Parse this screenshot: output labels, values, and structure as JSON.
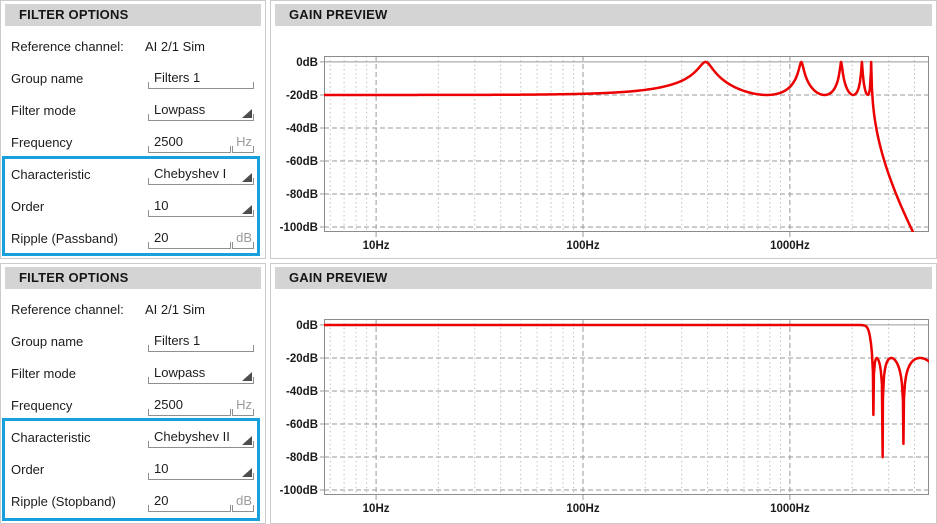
{
  "accent_blue": "#18a0dc",
  "curve_red": "#ec0000",
  "panels": [
    {
      "options": {
        "header": "FILTER OPTIONS",
        "reference": {
          "label": "Reference channel:",
          "value": "AI 2/1 Sim"
        },
        "group": {
          "label": "Group name",
          "value": "Filters 1"
        },
        "mode": {
          "label": "Filter mode",
          "value": "Lowpass"
        },
        "frequency": {
          "label": "Frequency",
          "value": "2500",
          "unit": "Hz"
        },
        "characteristic": {
          "label": "Characteristic",
          "value": "Chebyshev I"
        },
        "order": {
          "label": "Order",
          "value": "10"
        },
        "ripple": {
          "label": "Ripple (Passband)",
          "value": "20",
          "unit": "dB"
        }
      },
      "preview": {
        "header": "GAIN PREVIEW"
      }
    },
    {
      "options": {
        "header": "FILTER OPTIONS",
        "reference": {
          "label": "Reference channel:",
          "value": "AI 2/1 Sim"
        },
        "group": {
          "label": "Group name",
          "value": "Filters 1"
        },
        "mode": {
          "label": "Filter mode",
          "value": "Lowpass"
        },
        "frequency": {
          "label": "Frequency",
          "value": "2500",
          "unit": "Hz"
        },
        "characteristic": {
          "label": "Characteristic",
          "value": "Chebyshev II"
        },
        "order": {
          "label": "Order",
          "value": "10"
        },
        "ripple": {
          "label": "Ripple (Stopband)",
          "value": "20",
          "unit": "dB"
        }
      },
      "preview": {
        "header": "GAIN PREVIEW"
      }
    }
  ],
  "chart_data": [
    {
      "type": "line",
      "title": "GAIN PREVIEW",
      "x_axis": {
        "scale": "log",
        "unit": "Hz",
        "min": 5.6,
        "max": 4700,
        "ticks": [
          10,
          100,
          1000
        ],
        "tick_labels": [
          "10Hz",
          "100Hz",
          "1000Hz"
        ],
        "minor_gridlines": [
          6,
          7,
          8,
          9,
          20,
          30,
          40,
          50,
          60,
          70,
          80,
          90,
          200,
          300,
          400,
          500,
          600,
          700,
          800,
          900,
          2000,
          3000,
          4000
        ]
      },
      "y_axis": {
        "unit": "dB",
        "min": -103,
        "max": 3.6,
        "ticks": [
          0,
          -20,
          -40,
          -60,
          -80,
          -100
        ],
        "tick_labels": [
          "0dB",
          "-20dB",
          "-40dB",
          "-60dB",
          "-80dB",
          "-100dB"
        ]
      },
      "grid": "dashed",
      "legend": "none",
      "series": [
        {
          "name": "Chebyshev I lowpass gain",
          "color": "#ec0000",
          "filter_model": {
            "characteristic": "chebyshev_I",
            "order": 10,
            "cutoff_hz": 2500,
            "ripple_db": 20
          },
          "passband_floor_db": -20,
          "peak_level_db": 0,
          "peak_frequencies_hz": [
            390,
            1135,
            1768,
            2228,
            2469
          ]
        }
      ]
    },
    {
      "type": "line",
      "title": "GAIN PREVIEW",
      "x_axis": {
        "scale": "log",
        "unit": "Hz",
        "min": 5.6,
        "max": 4700,
        "ticks": [
          10,
          100,
          1000
        ],
        "tick_labels": [
          "10Hz",
          "100Hz",
          "1000Hz"
        ],
        "minor_gridlines": [
          6,
          7,
          8,
          9,
          20,
          30,
          40,
          50,
          60,
          70,
          80,
          90,
          200,
          300,
          400,
          500,
          600,
          700,
          800,
          900,
          2000,
          3000,
          4000
        ]
      },
      "y_axis": {
        "unit": "dB",
        "min": -103,
        "max": 3.6,
        "ticks": [
          0,
          -20,
          -40,
          -60,
          -80,
          -100
        ],
        "tick_labels": [
          "0dB",
          "-20dB",
          "-40dB",
          "-60dB",
          "-80dB",
          "-100dB"
        ]
      },
      "grid": "dashed",
      "legend": "none",
      "series": [
        {
          "name": "Chebyshev II lowpass gain",
          "color": "#ec0000",
          "filter_model": {
            "characteristic": "chebyshev_II",
            "order": 10,
            "cutoff_hz": 2500,
            "ripple_db": 20
          },
          "passband_level_db": 0,
          "stopband_ceiling_db": -20,
          "notch_frequencies_hz": [
            2531,
            2806,
            3536
          ]
        }
      ]
    }
  ]
}
